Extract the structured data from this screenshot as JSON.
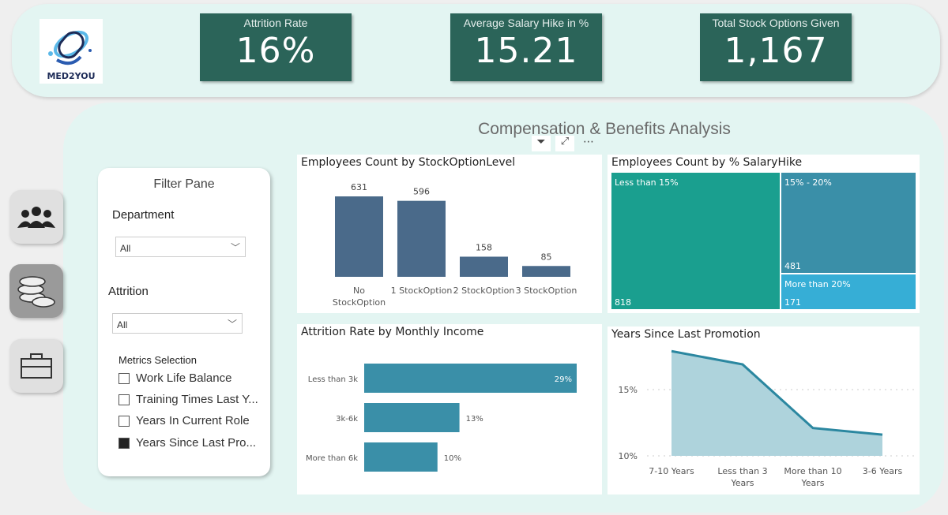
{
  "logo": {
    "text": "MED2YOU"
  },
  "kpis": [
    {
      "label": "Attrition Rate",
      "value": "16%"
    },
    {
      "label": "Average Salary Hike in %",
      "value": "15.21"
    },
    {
      "label": "Total Stock Options Given",
      "value": "1,167"
    }
  ],
  "page_title": "Compensation & Benefits Analysis",
  "nav": [
    {
      "icon": "people-icon"
    },
    {
      "icon": "coins-icon",
      "active": true
    },
    {
      "icon": "briefcase-icon"
    }
  ],
  "visual_header_icons": [
    "filter-icon",
    "focus-mode-icon",
    "more-options-icon"
  ],
  "filter_pane": {
    "title": "Filter Pane",
    "department": {
      "label": "Department",
      "value": "All"
    },
    "attrition": {
      "label": "Attrition",
      "value": "All"
    },
    "metrics": {
      "label": "Metrics Selection",
      "items": [
        {
          "label": "Work Life Balance",
          "checked": false
        },
        {
          "label": "Training Times Last Y...",
          "checked": false
        },
        {
          "label": "Years In Current Role",
          "checked": false
        },
        {
          "label": "Years Since Last Pro...",
          "checked": true
        }
      ]
    }
  },
  "chart_data": [
    {
      "type": "bar",
      "title": "Employees Count by StockOptionLevel",
      "categories": [
        "No StockOption",
        "1 StockOption",
        "2 StockOption",
        "3 StockOption"
      ],
      "values": [
        631,
        596,
        158,
        85
      ],
      "color": "#4a6a8a"
    },
    {
      "type": "treemap",
      "title": "Employees Count by % SalaryHike",
      "categories": [
        "Less than 15%",
        "15% - 20%",
        "More than 20%"
      ],
      "values": [
        818,
        481,
        171
      ],
      "colors": [
        "#1a9f8f",
        "#3a8fa8",
        "#36aed6"
      ]
    },
    {
      "type": "bar",
      "orientation": "horizontal",
      "title": "Attrition Rate by Monthly Income",
      "categories": [
        "Less than 3k",
        "3k-6k",
        "More than 6k"
      ],
      "values": [
        29,
        13,
        10
      ],
      "labels": [
        "29%",
        "13%",
        "10%"
      ],
      "color": "#3a8fa8"
    },
    {
      "type": "area",
      "title": "Years Since Last Promotion",
      "categories": [
        "7-10 Years",
        "Less than 3 Years",
        "More than 10 Years",
        "3-6 Years"
      ],
      "values": [
        17.9,
        16.9,
        12.1,
        11.6
      ],
      "yticks": [
        "15%",
        "10%"
      ],
      "ylim": [
        10,
        18
      ],
      "grid": true,
      "color": "#2b87a0"
    }
  ]
}
